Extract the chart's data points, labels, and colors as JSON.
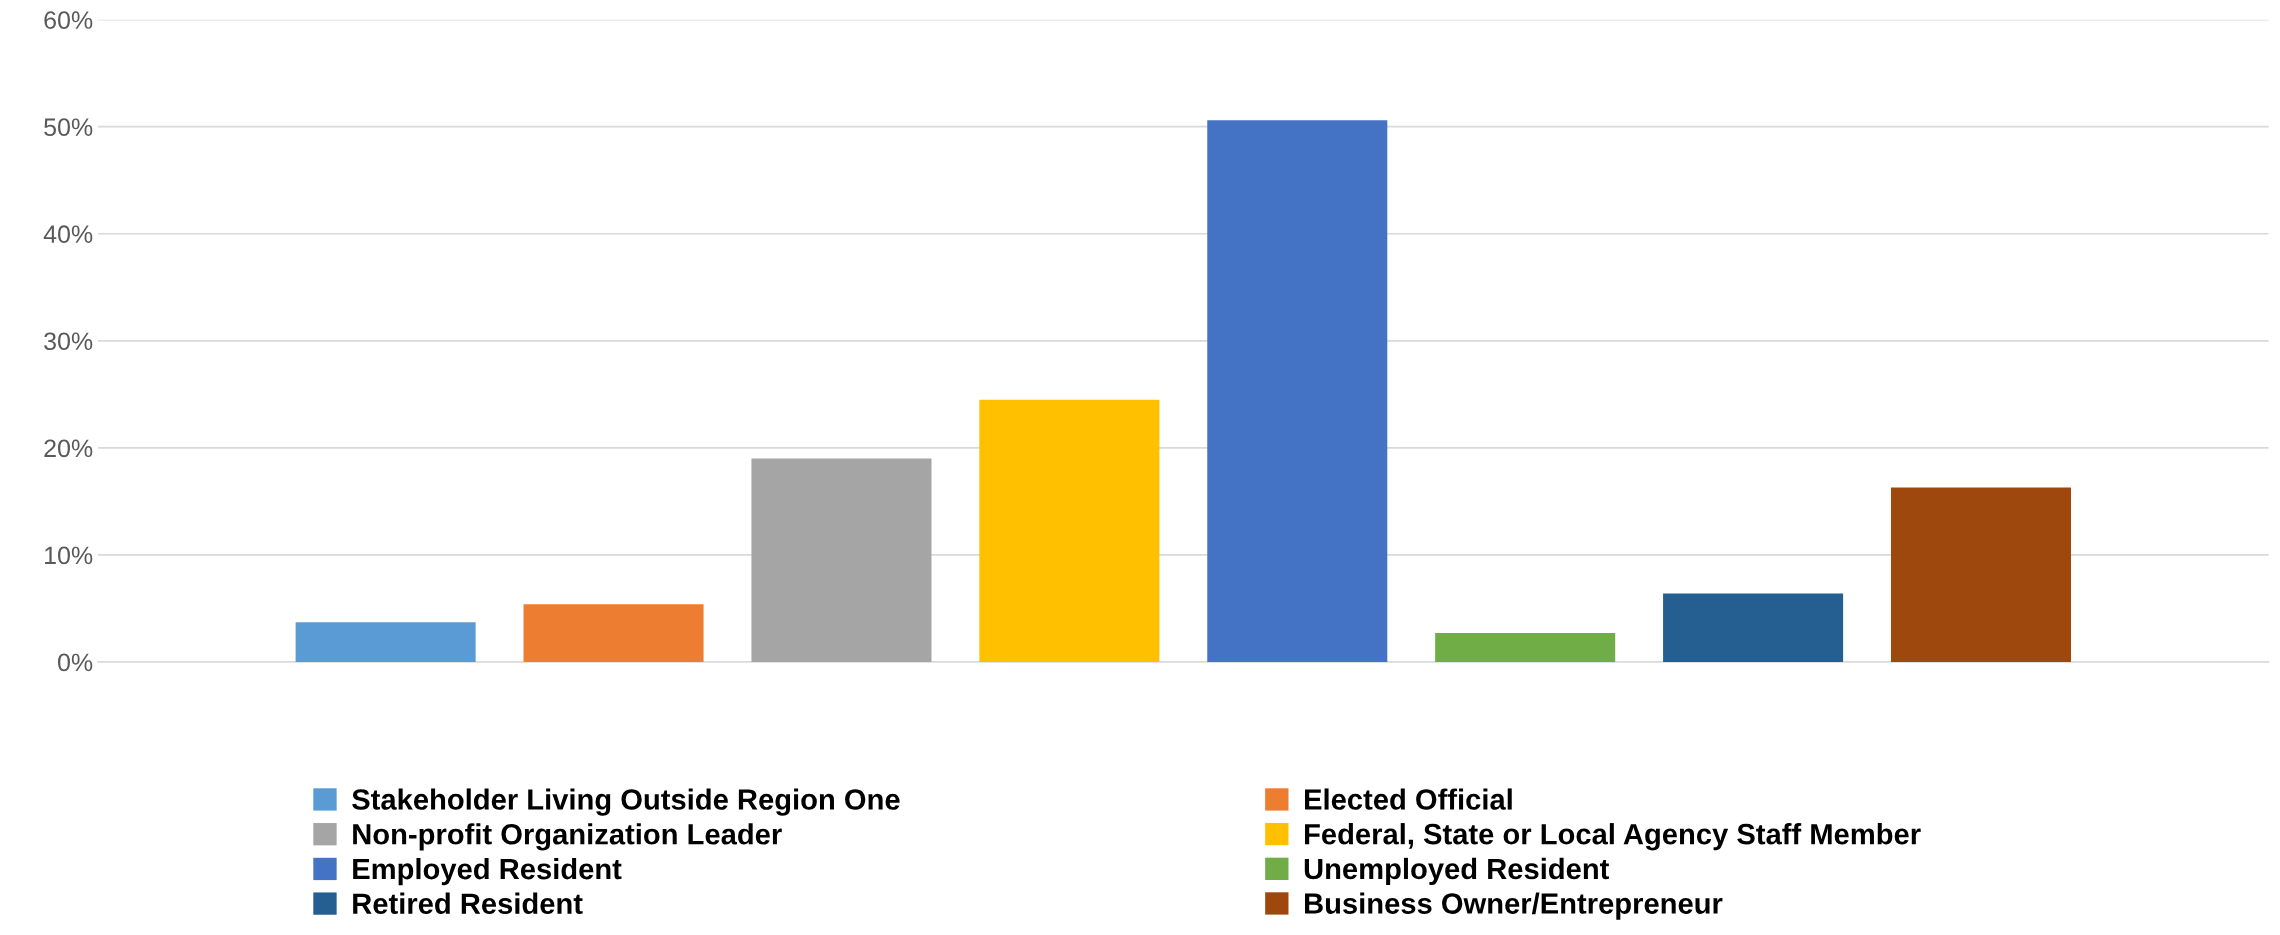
{
  "chart_data": {
    "type": "bar",
    "categories": [
      null
    ],
    "series": [
      {
        "name": "Stakeholder Living Outside Region One",
        "color": "#5b9bd5",
        "values": [
          3.7
        ]
      },
      {
        "name": "Elected Official",
        "color": "#ed7d31",
        "values": [
          5.4
        ]
      },
      {
        "name": "Non-profit Organization Leader",
        "color": "#a5a5a5",
        "values": [
          19.0
        ]
      },
      {
        "name": "Federal, State or Local Agency Staff Member",
        "color": "#ffc000",
        "values": [
          24.5
        ]
      },
      {
        "name": "Employed Resident",
        "color": "#4472c4",
        "values": [
          50.6
        ]
      },
      {
        "name": "Unemployed Resident",
        "color": "#70ad47",
        "values": [
          2.7
        ]
      },
      {
        "name": "Retired Resident",
        "color": "#255e91",
        "values": [
          6.4
        ]
      },
      {
        "name": "Business Owner/Entrepreneur",
        "color": "#9e480e",
        "values": [
          16.3
        ]
      }
    ],
    "ylim": [
      0,
      60
    ],
    "yticks": [
      {
        "value": 0,
        "label": "0%"
      },
      {
        "value": 10,
        "label": "10%"
      },
      {
        "value": 20,
        "label": "20%"
      },
      {
        "value": 30,
        "label": "30%"
      },
      {
        "value": 40,
        "label": "40%"
      },
      {
        "value": 50,
        "label": "50%"
      },
      {
        "value": 60,
        "label": "60%"
      }
    ],
    "grid": "y",
    "legend": "bottom"
  }
}
